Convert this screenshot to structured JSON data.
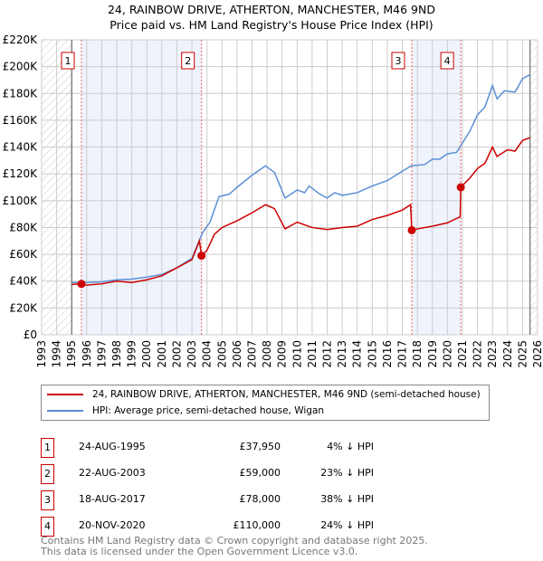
{
  "chart_data": {
    "type": "line",
    "title": "24, RAINBOW DRIVE, ATHERTON, MANCHESTER, M46 9ND",
    "subtitle": "Price paid vs. HM Land Registry's House Price Index (HPI)",
    "xlim": [
      1993,
      2026
    ],
    "ylim": [
      0,
      220000
    ],
    "x_ticks": [
      "1993",
      "1994",
      "1995",
      "1996",
      "1997",
      "1998",
      "1999",
      "2000",
      "2001",
      "2002",
      "2003",
      "2004",
      "2005",
      "2006",
      "2007",
      "2008",
      "2009",
      "2010",
      "2011",
      "2012",
      "2013",
      "2014",
      "2015",
      "2016",
      "2017",
      "2018",
      "2019",
      "2020",
      "2021",
      "2022",
      "2023",
      "2024",
      "2025",
      "2026"
    ],
    "y_ticks": [
      {
        "v": 0,
        "label": "£0"
      },
      {
        "v": 20000,
        "label": "£20K"
      },
      {
        "v": 40000,
        "label": "£40K"
      },
      {
        "v": 60000,
        "label": "£60K"
      },
      {
        "v": 80000,
        "label": "£80K"
      },
      {
        "v": 100000,
        "label": "£100K"
      },
      {
        "v": 120000,
        "label": "£120K"
      },
      {
        "v": 140000,
        "label": "£140K"
      },
      {
        "v": 160000,
        "label": "£160K"
      },
      {
        "v": 180000,
        "label": "£180K"
      },
      {
        "v": 200000,
        "label": "£200K"
      },
      {
        "v": 220000,
        "label": "£220K"
      }
    ],
    "grid": true,
    "series": [
      {
        "name": "24, RAINBOW DRIVE, ATHERTON, MANCHESTER, M46 9ND (semi-detached house)",
        "color": "#cc0000",
        "points": [
          [
            1995.0,
            37500
          ],
          [
            1995.65,
            37950
          ],
          [
            1996,
            37000
          ],
          [
            1997,
            38000
          ],
          [
            1998,
            40000
          ],
          [
            1999,
            39000
          ],
          [
            2000,
            41000
          ],
          [
            2001,
            44000
          ],
          [
            2002,
            50000
          ],
          [
            2003,
            56000
          ],
          [
            2003.5,
            70000
          ],
          [
            2003.64,
            59000
          ],
          [
            2004,
            63000
          ],
          [
            2004.5,
            75000
          ],
          [
            2005,
            80000
          ],
          [
            2006,
            85000
          ],
          [
            2007,
            91000
          ],
          [
            2007.9,
            97000
          ],
          [
            2008.5,
            94000
          ],
          [
            2009.2,
            79000
          ],
          [
            2010,
            84000
          ],
          [
            2011,
            80000
          ],
          [
            2012,
            78500
          ],
          [
            2013,
            80000
          ],
          [
            2014,
            81000
          ],
          [
            2015,
            86000
          ],
          [
            2016,
            89000
          ],
          [
            2017,
            93000
          ],
          [
            2017.55,
            97000
          ],
          [
            2017.63,
            78000
          ],
          [
            2018,
            79000
          ],
          [
            2019,
            81000
          ],
          [
            2020,
            83500
          ],
          [
            2020.85,
            88000
          ],
          [
            2020.89,
            110000
          ],
          [
            2021.5,
            117000
          ],
          [
            2022,
            124000
          ],
          [
            2022.5,
            128000
          ],
          [
            2023,
            140000
          ],
          [
            2023.3,
            133000
          ],
          [
            2024,
            138000
          ],
          [
            2024.5,
            137000
          ],
          [
            2025,
            145000
          ],
          [
            2025.5,
            147000
          ]
        ]
      },
      {
        "name": "HPI: Average price, semi-detached house, Wigan",
        "color": "#5b8fd4",
        "points": [
          [
            1995.0,
            39000
          ],
          [
            1996,
            39000
          ],
          [
            1997,
            39500
          ],
          [
            1998,
            41000
          ],
          [
            1999,
            41500
          ],
          [
            2000,
            43000
          ],
          [
            2001,
            45000
          ],
          [
            2002,
            50000
          ],
          [
            2003,
            57000
          ],
          [
            2003.7,
            76000
          ],
          [
            2004.2,
            84000
          ],
          [
            2004.8,
            103000
          ],
          [
            2005.5,
            105000
          ],
          [
            2006,
            110000
          ],
          [
            2007,
            119000
          ],
          [
            2007.9,
            126000
          ],
          [
            2008.5,
            121000
          ],
          [
            2009.2,
            102000
          ],
          [
            2010,
            108000
          ],
          [
            2010.5,
            106000
          ],
          [
            2010.8,
            111000
          ],
          [
            2011.5,
            105000
          ],
          [
            2012,
            102000
          ],
          [
            2012.5,
            106000
          ],
          [
            2013,
            104000
          ],
          [
            2014,
            106000
          ],
          [
            2015,
            111000
          ],
          [
            2016,
            115000
          ],
          [
            2017,
            122000
          ],
          [
            2017.6,
            126000
          ],
          [
            2018.5,
            127000
          ],
          [
            2019,
            131000
          ],
          [
            2019.5,
            131000
          ],
          [
            2020,
            135000
          ],
          [
            2020.6,
            136000
          ],
          [
            2021,
            143000
          ],
          [
            2021.5,
            152000
          ],
          [
            2022,
            164000
          ],
          [
            2022.5,
            170000
          ],
          [
            2023,
            186000
          ],
          [
            2023.3,
            176000
          ],
          [
            2023.8,
            182000
          ],
          [
            2024.5,
            181000
          ],
          [
            2025,
            191000
          ],
          [
            2025.5,
            194000
          ]
        ]
      }
    ],
    "sales": [
      {
        "label": "1",
        "x": 1995.65,
        "y": 37950
      },
      {
        "label": "2",
        "x": 2003.64,
        "y": 59000
      },
      {
        "label": "3",
        "x": 2017.63,
        "y": 78000
      },
      {
        "label": "4",
        "x": 2020.89,
        "y": 110000
      }
    ],
    "data_range": [
      1995.0,
      2025.5
    ],
    "legend": "below"
  },
  "header": {
    "title": "24, RAINBOW DRIVE, ATHERTON, MANCHESTER, M46 9ND",
    "subtitle": "Price paid vs. HM Land Registry's House Price Index (HPI)"
  },
  "legend": {
    "red": "24, RAINBOW DRIVE, ATHERTON, MANCHESTER, M46 9ND (semi-detached house)",
    "blue": "HPI: Average price, semi-detached house, Wigan"
  },
  "sales_table": [
    {
      "num": "1",
      "date": "24-AUG-1995",
      "price": "£37,950",
      "hpi": "4% ↓ HPI"
    },
    {
      "num": "2",
      "date": "22-AUG-2003",
      "price": "£59,000",
      "hpi": "23% ↓ HPI"
    },
    {
      "num": "3",
      "date": "18-AUG-2017",
      "price": "£78,000",
      "hpi": "38% ↓ HPI"
    },
    {
      "num": "4",
      "date": "20-NOV-2020",
      "price": "£110,000",
      "hpi": "24% ↓ HPI"
    }
  ],
  "footer": {
    "line1": "Contains HM Land Registry data © Crown copyright and database right 2025.",
    "line2": "This data is licensed under the Open Government Licence v3.0."
  }
}
